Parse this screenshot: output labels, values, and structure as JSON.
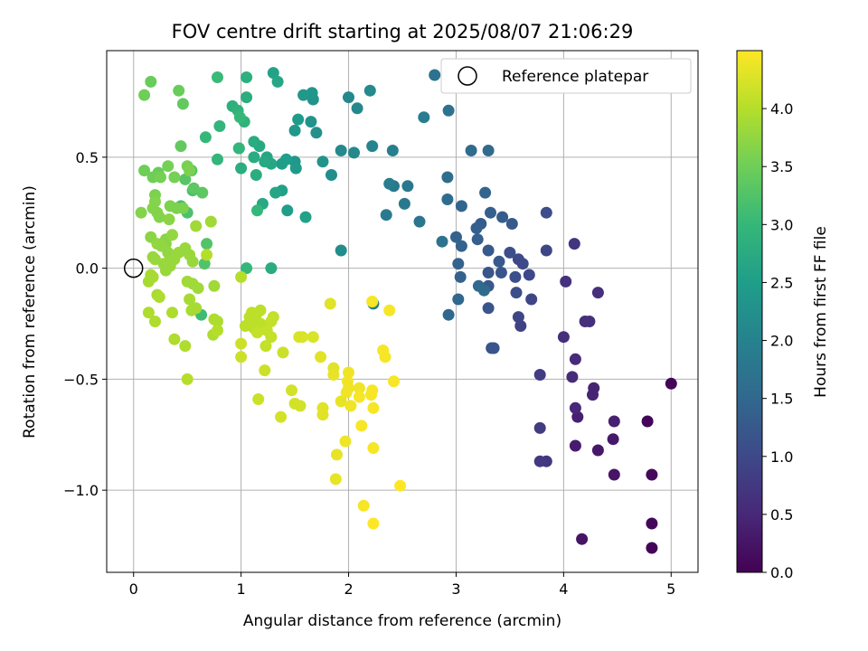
{
  "chart_data": {
    "type": "scatter",
    "title": "FOV centre drift starting at 2025/08/07 21:06:29",
    "xlabel": "Angular distance from reference (arcmin)",
    "ylabel": "Rotation from reference (arcmin)",
    "xlim": [
      -0.25,
      5.25
    ],
    "ylim": [
      -1.37,
      0.98
    ],
    "xticks": [
      0,
      1,
      2,
      3,
      4,
      5
    ],
    "xtick_labels": [
      "0",
      "1",
      "2",
      "3",
      "4",
      "5"
    ],
    "yticks": [
      0.5,
      0.0,
      -0.5,
      -1.0
    ],
    "ytick_labels": [
      "0.5",
      "0.0",
      "−0.5",
      "−1.0"
    ],
    "grid": true,
    "legend": {
      "placement": "top-right",
      "entries": [
        "Reference platepar"
      ]
    },
    "reference_point": {
      "x": 0.0,
      "y": 0.0,
      "marker": "open-circle",
      "label": "Reference platepar"
    },
    "colorbar": {
      "label": "Hours from first FF file",
      "colormap": "viridis",
      "range": [
        0.0,
        4.5
      ],
      "ticks": [
        0.0,
        0.5,
        1.0,
        1.5,
        2.0,
        2.5,
        3.0,
        3.5,
        4.0
      ],
      "tick_labels": [
        "0.0",
        "0.5",
        "1.0",
        "1.5",
        "2.0",
        "2.5",
        "3.0",
        "3.5",
        "4.0"
      ],
      "colors": [
        "#440154",
        "#482878",
        "#3e4989",
        "#31688e",
        "#26828e",
        "#1f9e89",
        "#35b779",
        "#6ece58",
        "#b5de2b",
        "#fde725"
      ]
    },
    "points": [
      [
        4.82,
        -1.26,
        0.05
      ],
      [
        4.82,
        -1.15,
        0.08
      ],
      [
        5.0,
        -0.52,
        0.05
      ],
      [
        4.78,
        -0.69,
        0.05
      ],
      [
        4.82,
        -0.93,
        0.1
      ],
      [
        4.47,
        -0.93,
        0.25
      ],
      [
        4.17,
        -1.22,
        0.25
      ],
      [
        4.46,
        -0.77,
        0.3
      ],
      [
        4.32,
        -0.82,
        0.3
      ],
      [
        4.47,
        -0.69,
        0.4
      ],
      [
        4.11,
        -0.8,
        0.35
      ],
      [
        4.13,
        -0.67,
        0.4
      ],
      [
        4.27,
        -0.57,
        0.45
      ],
      [
        4.28,
        -0.54,
        0.45
      ],
      [
        4.11,
        -0.63,
        0.5
      ],
      [
        4.08,
        -0.49,
        0.55
      ],
      [
        4.11,
        -0.41,
        0.55
      ],
      [
        4.0,
        -0.31,
        0.6
      ],
      [
        4.2,
        -0.24,
        0.6
      ],
      [
        4.24,
        -0.24,
        0.6
      ],
      [
        4.32,
        -0.11,
        0.6
      ],
      [
        4.02,
        -0.06,
        0.65
      ],
      [
        4.1,
        0.11,
        0.7
      ],
      [
        3.84,
        -0.87,
        0.7
      ],
      [
        3.78,
        -0.87,
        0.75
      ],
      [
        3.78,
        -0.72,
        0.8
      ],
      [
        3.78,
        -0.48,
        0.8
      ],
      [
        3.6,
        -0.26,
        0.9
      ],
      [
        3.58,
        -0.22,
        0.95
      ],
      [
        3.7,
        -0.14,
        0.95
      ],
      [
        3.68,
        -0.03,
        1.0
      ],
      [
        3.62,
        0.02,
        1.0
      ],
      [
        3.58,
        0.04,
        1.0
      ],
      [
        3.84,
        0.08,
        0.95
      ],
      [
        3.84,
        0.25,
        1.05
      ],
      [
        3.5,
        0.07,
        1.1
      ],
      [
        3.55,
        -0.04,
        1.1
      ],
      [
        3.56,
        -0.11,
        1.1
      ],
      [
        3.33,
        -0.36,
        1.15
      ],
      [
        3.35,
        -0.36,
        1.2
      ],
      [
        3.3,
        -0.18,
        1.2
      ],
      [
        3.42,
        -0.02,
        1.2
      ],
      [
        3.3,
        -0.02,
        1.2
      ],
      [
        3.3,
        -0.08,
        1.25
      ],
      [
        3.3,
        0.08,
        1.25
      ],
      [
        3.4,
        0.03,
        1.25
      ],
      [
        3.52,
        0.2,
        1.25
      ],
      [
        3.43,
        0.23,
        1.3
      ],
      [
        3.32,
        0.25,
        1.35
      ],
      [
        3.23,
        0.2,
        1.3
      ],
      [
        3.19,
        0.18,
        1.35
      ],
      [
        3.2,
        0.13,
        1.35
      ],
      [
        3.05,
        0.1,
        1.4
      ],
      [
        3.0,
        0.14,
        1.4
      ],
      [
        3.04,
        -0.04,
        1.4
      ],
      [
        3.02,
        0.02,
        1.4
      ],
      [
        3.27,
        0.34,
        1.45
      ],
      [
        3.05,
        0.28,
        1.45
      ],
      [
        2.93,
        -0.21,
        1.5
      ],
      [
        3.02,
        -0.14,
        1.5
      ],
      [
        3.21,
        -0.08,
        1.5
      ],
      [
        3.26,
        -0.1,
        1.55
      ],
      [
        3.14,
        0.53,
        1.55
      ],
      [
        3.3,
        0.53,
        1.55
      ],
      [
        2.92,
        0.31,
        1.6
      ],
      [
        2.92,
        0.41,
        1.6
      ],
      [
        2.93,
        0.71,
        1.7
      ],
      [
        2.8,
        0.87,
        1.7
      ],
      [
        2.87,
        0.12,
        1.7
      ],
      [
        2.66,
        0.21,
        1.75
      ],
      [
        2.55,
        0.37,
        1.8
      ],
      [
        2.52,
        0.29,
        1.8
      ],
      [
        2.42,
        0.37,
        1.8
      ],
      [
        2.35,
        0.24,
        1.85
      ],
      [
        2.38,
        0.38,
        1.9
      ],
      [
        2.7,
        0.68,
        1.9
      ],
      [
        2.41,
        0.53,
        1.95
      ],
      [
        2.23,
        -0.16,
        1.95
      ],
      [
        2.22,
        0.55,
        2.05
      ],
      [
        2.05,
        0.52,
        2.1
      ],
      [
        2.0,
        0.77,
        2.1
      ],
      [
        2.08,
        0.72,
        2.1
      ],
      [
        2.2,
        0.8,
        2.15
      ],
      [
        1.93,
        0.53,
        2.15
      ],
      [
        1.93,
        0.08,
        2.2
      ],
      [
        1.84,
        0.42,
        2.2
      ],
      [
        1.7,
        0.61,
        2.25
      ],
      [
        1.76,
        0.48,
        2.3
      ],
      [
        1.65,
        0.66,
        2.3
      ],
      [
        1.67,
        0.76,
        2.3
      ],
      [
        1.66,
        0.79,
        2.35
      ],
      [
        1.58,
        0.78,
        2.4
      ],
      [
        1.5,
        0.62,
        2.4
      ],
      [
        1.5,
        0.48,
        2.4
      ],
      [
        1.53,
        0.67,
        2.45
      ],
      [
        1.51,
        0.45,
        2.45
      ],
      [
        1.38,
        0.47,
        2.5
      ],
      [
        1.42,
        0.49,
        2.5
      ],
      [
        1.43,
        0.26,
        2.5
      ],
      [
        1.6,
        0.23,
        2.55
      ],
      [
        1.38,
        0.35,
        2.55
      ],
      [
        1.3,
        0.88,
        2.6
      ],
      [
        1.34,
        0.84,
        2.65
      ],
      [
        1.32,
        0.34,
        2.65
      ],
      [
        1.28,
        0.47,
        2.65
      ],
      [
        1.24,
        0.5,
        2.65
      ],
      [
        1.22,
        0.48,
        2.7
      ],
      [
        1.2,
        0.29,
        2.7
      ],
      [
        1.17,
        0.55,
        2.7
      ],
      [
        1.12,
        0.5,
        2.75
      ],
      [
        1.12,
        0.57,
        2.75
      ],
      [
        1.28,
        0.0,
        2.75
      ],
      [
        1.14,
        0.42,
        2.8
      ],
      [
        1.0,
        0.45,
        2.8
      ],
      [
        1.05,
        0.77,
        2.8
      ],
      [
        1.05,
        0.86,
        2.85
      ],
      [
        0.92,
        0.73,
        2.85
      ],
      [
        0.97,
        0.71,
        2.9
      ],
      [
        0.98,
        0.54,
        2.9
      ],
      [
        1.03,
        0.66,
        2.9
      ],
      [
        0.8,
        0.64,
        2.95
      ],
      [
        0.78,
        0.49,
        2.95
      ],
      [
        0.67,
        0.59,
        3.0
      ],
      [
        0.98,
        0.54,
        2.95
      ],
      [
        0.99,
        0.68,
        3.0
      ],
      [
        1.05,
        0.0,
        3.0
      ],
      [
        1.15,
        0.26,
        3.0
      ],
      [
        0.78,
        0.86,
        3.05
      ],
      [
        0.63,
        -0.21,
        3.1
      ],
      [
        0.44,
        0.28,
        3.15
      ],
      [
        0.5,
        0.25,
        3.2
      ],
      [
        0.55,
        0.35,
        3.2
      ],
      [
        0.66,
        0.02,
        3.25
      ],
      [
        0.68,
        0.11,
        3.25
      ],
      [
        0.54,
        0.44,
        3.3
      ],
      [
        0.48,
        0.4,
        3.3
      ],
      [
        0.64,
        0.34,
        3.35
      ],
      [
        0.56,
        0.36,
        3.35
      ],
      [
        0.44,
        0.55,
        3.4
      ],
      [
        0.46,
        0.74,
        3.4
      ],
      [
        0.42,
        0.8,
        3.45
      ],
      [
        0.23,
        0.43,
        3.45
      ],
      [
        0.16,
        0.84,
        3.45
      ],
      [
        0.1,
        0.78,
        3.5
      ],
      [
        0.1,
        0.44,
        3.5
      ],
      [
        0.18,
        0.41,
        3.5
      ],
      [
        0.25,
        0.41,
        3.55
      ],
      [
        0.32,
        0.46,
        3.55
      ],
      [
        0.38,
        0.41,
        3.55
      ],
      [
        0.5,
        0.46,
        3.55
      ],
      [
        0.52,
        0.44,
        3.6
      ],
      [
        0.46,
        0.27,
        3.6
      ],
      [
        0.4,
        0.27,
        3.6
      ],
      [
        0.34,
        0.28,
        3.6
      ],
      [
        0.2,
        0.33,
        3.6
      ],
      [
        0.2,
        0.3,
        3.65
      ],
      [
        0.22,
        0.25,
        3.65
      ],
      [
        0.24,
        0.23,
        3.65
      ],
      [
        0.18,
        0.27,
        3.65
      ],
      [
        0.07,
        0.25,
        3.65
      ],
      [
        0.33,
        0.22,
        3.7
      ],
      [
        0.16,
        0.14,
        3.7
      ],
      [
        0.3,
        0.13,
        3.7
      ],
      [
        0.3,
        0.11,
        3.7
      ],
      [
        0.36,
        0.15,
        3.75
      ],
      [
        0.22,
        0.11,
        3.75
      ],
      [
        0.26,
        0.1,
        3.75
      ],
      [
        0.32,
        0.07,
        3.75
      ],
      [
        0.34,
        0.04,
        3.75
      ],
      [
        0.18,
        0.05,
        3.8
      ],
      [
        0.2,
        0.04,
        3.8
      ],
      [
        0.28,
        0.02,
        3.8
      ],
      [
        0.3,
        -0.01,
        3.8
      ],
      [
        0.34,
        0.01,
        3.8
      ],
      [
        0.38,
        0.04,
        3.8
      ],
      [
        0.42,
        0.07,
        3.8
      ],
      [
        0.48,
        0.09,
        3.8
      ],
      [
        0.52,
        0.06,
        3.8
      ],
      [
        0.55,
        0.03,
        3.8
      ],
      [
        0.58,
        0.19,
        3.85
      ],
      [
        0.72,
        0.21,
        3.85
      ],
      [
        0.5,
        -0.06,
        3.85
      ],
      [
        0.55,
        -0.07,
        3.85
      ],
      [
        0.6,
        -0.09,
        3.85
      ],
      [
        0.75,
        -0.08,
        3.85
      ],
      [
        0.52,
        -0.14,
        3.9
      ],
      [
        0.58,
        -0.18,
        3.9
      ],
      [
        0.54,
        -0.19,
        3.9
      ],
      [
        0.22,
        -0.12,
        3.9
      ],
      [
        0.18,
        -0.04,
        3.9
      ],
      [
        0.14,
        -0.06,
        3.9
      ],
      [
        0.16,
        -0.03,
        3.9
      ],
      [
        0.24,
        -0.13,
        3.95
      ],
      [
        0.14,
        -0.2,
        3.95
      ],
      [
        0.2,
        -0.24,
        3.95
      ],
      [
        0.36,
        -0.2,
        3.95
      ],
      [
        0.38,
        -0.32,
        3.95
      ],
      [
        0.48,
        -0.35,
        3.95
      ],
      [
        0.5,
        -0.5,
        4.0
      ],
      [
        0.68,
        0.06,
        4.0
      ],
      [
        0.75,
        -0.23,
        3.95
      ],
      [
        0.78,
        -0.24,
        3.95
      ],
      [
        0.74,
        -0.3,
        3.95
      ],
      [
        0.78,
        -0.28,
        4.0
      ],
      [
        1.0,
        -0.04,
        4.0
      ],
      [
        1.1,
        -0.2,
        4.05
      ],
      [
        1.18,
        -0.19,
        4.05
      ],
      [
        1.14,
        -0.21,
        4.05
      ],
      [
        1.08,
        -0.22,
        4.05
      ],
      [
        1.1,
        -0.25,
        4.05
      ],
      [
        1.04,
        -0.26,
        4.05
      ],
      [
        1.18,
        -0.25,
        4.05
      ],
      [
        1.12,
        -0.27,
        4.05
      ],
      [
        1.15,
        -0.29,
        4.1
      ],
      [
        1.24,
        -0.28,
        4.1
      ],
      [
        1.28,
        -0.24,
        4.1
      ],
      [
        1.3,
        -0.22,
        4.1
      ],
      [
        1.23,
        -0.35,
        4.1
      ],
      [
        1.28,
        -0.31,
        4.1
      ],
      [
        1.39,
        -0.38,
        4.15
      ],
      [
        1.0,
        -0.34,
        4.15
      ],
      [
        1.0,
        -0.4,
        4.15
      ],
      [
        1.16,
        -0.59,
        4.15
      ],
      [
        1.22,
        -0.46,
        4.15
      ],
      [
        1.37,
        -0.67,
        4.2
      ],
      [
        1.47,
        -0.55,
        4.2
      ],
      [
        1.5,
        -0.61,
        4.2
      ],
      [
        1.55,
        -0.62,
        4.2
      ],
      [
        1.54,
        -0.31,
        4.25
      ],
      [
        1.57,
        -0.31,
        4.25
      ],
      [
        1.67,
        -0.31,
        4.25
      ],
      [
        1.74,
        -0.4,
        4.3
      ],
      [
        1.76,
        -0.63,
        4.3
      ],
      [
        1.76,
        -0.66,
        4.3
      ],
      [
        1.83,
        -0.16,
        4.3
      ],
      [
        1.86,
        -0.45,
        4.3
      ],
      [
        1.86,
        -0.48,
        4.35
      ],
      [
        1.89,
        -0.84,
        4.35
      ],
      [
        1.88,
        -0.95,
        4.35
      ],
      [
        1.93,
        -0.6,
        4.35
      ],
      [
        1.97,
        -0.78,
        4.4
      ],
      [
        1.99,
        -0.51,
        4.4
      ],
      [
        2.0,
        -0.47,
        4.4
      ],
      [
        2.0,
        -0.54,
        4.4
      ],
      [
        1.98,
        -0.56,
        4.4
      ],
      [
        2.02,
        -0.62,
        4.4
      ],
      [
        2.1,
        -0.54,
        4.4
      ],
      [
        2.1,
        -0.58,
        4.45
      ],
      [
        2.12,
        -0.71,
        4.45
      ],
      [
        2.14,
        -1.07,
        4.45
      ],
      [
        2.21,
        -0.57,
        4.45
      ],
      [
        2.22,
        -0.55,
        4.45
      ],
      [
        2.23,
        -0.81,
        4.45
      ],
      [
        2.23,
        -0.63,
        4.45
      ],
      [
        2.23,
        -1.15,
        4.5
      ],
      [
        2.22,
        -0.15,
        4.45
      ],
      [
        2.32,
        -0.37,
        4.45
      ],
      [
        2.34,
        -0.4,
        4.45
      ],
      [
        2.38,
        -0.19,
        4.45
      ],
      [
        2.42,
        -0.51,
        4.45
      ],
      [
        2.48,
        -0.98,
        4.5
      ]
    ]
  }
}
